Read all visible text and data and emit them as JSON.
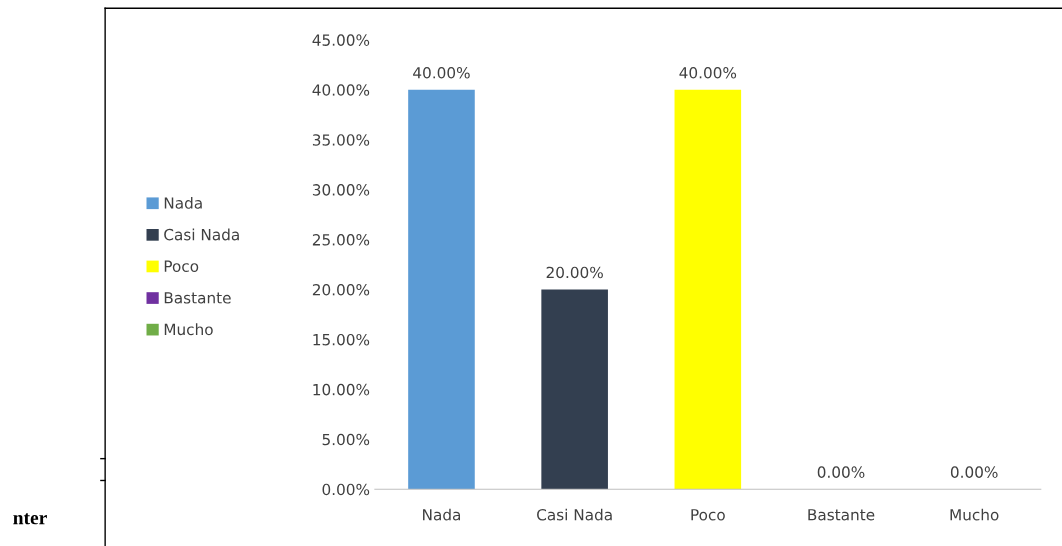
{
  "chart_data": {
    "type": "bar",
    "categories": [
      "Nada",
      "Casi Nada",
      "Poco",
      "Bastante",
      "Mucho"
    ],
    "series": [
      {
        "name": "Nada",
        "color": "#5b9bd5",
        "values": [
          40,
          null,
          null,
          null,
          null
        ],
        "value_labels": [
          "40.00%",
          null,
          null,
          null,
          null
        ]
      },
      {
        "name": "Casi Nada",
        "color": "#333f50",
        "values": [
          null,
          20,
          null,
          null,
          null
        ],
        "value_labels": [
          null,
          "20.00%",
          null,
          null,
          null
        ]
      },
      {
        "name": "Poco",
        "color": "#ffff00",
        "values": [
          null,
          null,
          40,
          null,
          null
        ],
        "value_labels": [
          null,
          null,
          "40.00%",
          null,
          null
        ]
      },
      {
        "name": "Bastante",
        "color": "#7030a0",
        "values": [
          null,
          null,
          null,
          0,
          null
        ],
        "value_labels": [
          null,
          null,
          null,
          "0.00%",
          null
        ]
      },
      {
        "name": "Mucho",
        "color": "#70ad47",
        "values": [
          null,
          null,
          null,
          null,
          0
        ],
        "value_labels": [
          null,
          null,
          null,
          null,
          "0.00%"
        ]
      }
    ],
    "stacked": true,
    "ylim": [
      0,
      45
    ],
    "yticks": [
      {
        "value": 0,
        "label": "0.00%"
      },
      {
        "value": 5,
        "label": "5.00%"
      },
      {
        "value": 10,
        "label": "10.00%"
      },
      {
        "value": 15,
        "label": "15.00%"
      },
      {
        "value": 20,
        "label": "20.00%"
      },
      {
        "value": 25,
        "label": "25.00%"
      },
      {
        "value": 30,
        "label": "30.00%"
      },
      {
        "value": 35,
        "label": "35.00%"
      },
      {
        "value": 40,
        "label": "40.00%"
      },
      {
        "value": 45,
        "label": "45.00%"
      }
    ],
    "legend": "left",
    "annotations": [
      "nter"
    ]
  }
}
